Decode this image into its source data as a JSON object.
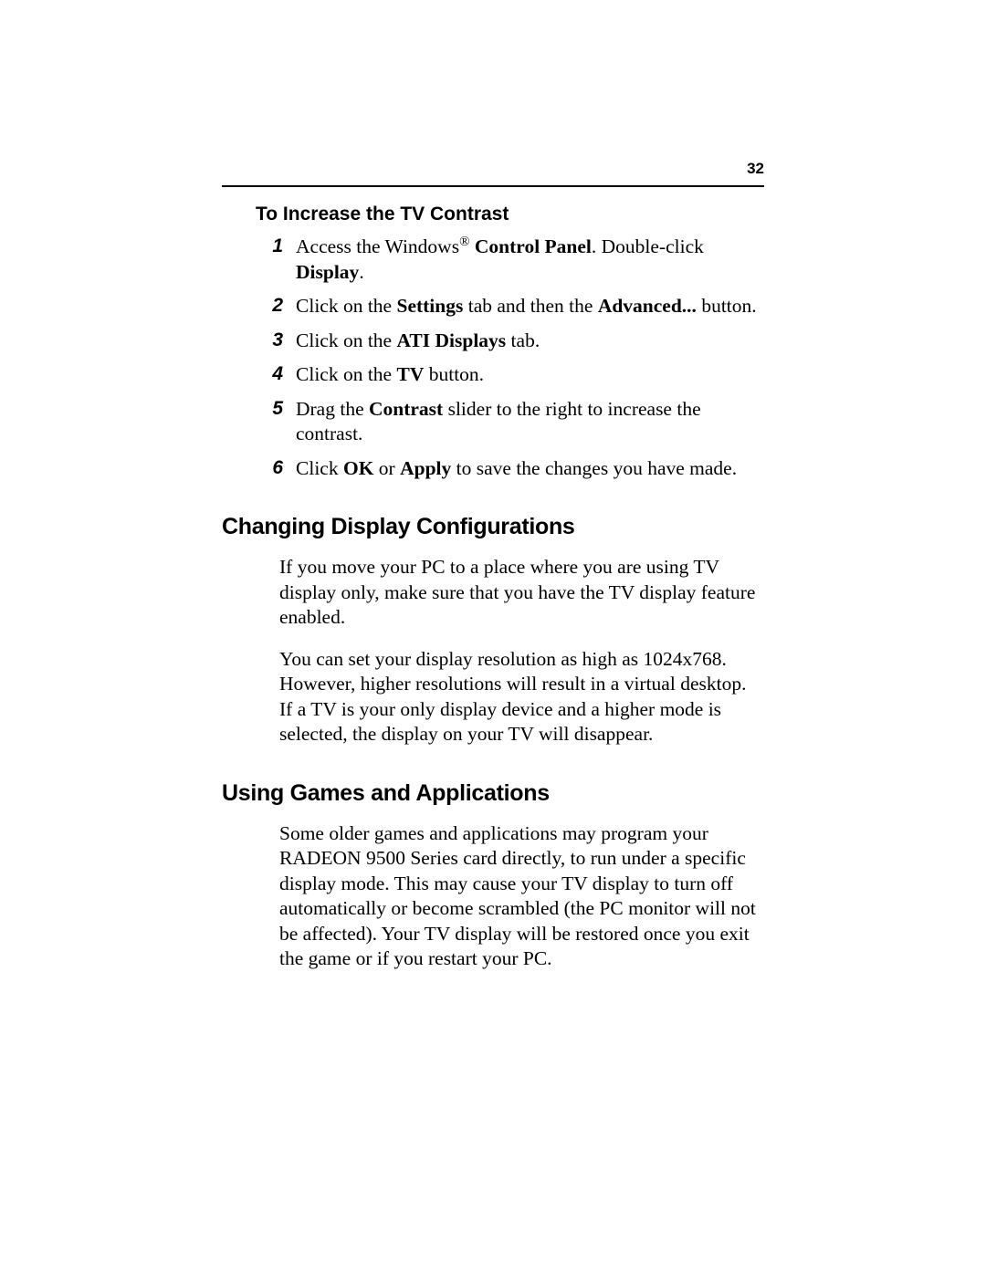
{
  "page_number": "32",
  "section_subheading": "To Increase the TV Contrast",
  "steps": [
    {
      "n": "1",
      "html": "Access the Windows<sup>®</sup> <b>Control Panel</b>. Double-click <b>Display</b>."
    },
    {
      "n": "2",
      "html": "Click on the <b>Settings</b> tab and then the <b>Advanced...</b> button."
    },
    {
      "n": "3",
      "html": "Click on the <b>ATI Displays</b> tab."
    },
    {
      "n": "4",
      "html": "Click on the <b>TV</b> button."
    },
    {
      "n": "5",
      "html": "Drag the <b>Contrast</b> slider to the right to increase the contrast."
    },
    {
      "n": "6",
      "html": "Click <b>OK</b> or <b>Apply</b> to save the changes you have made."
    }
  ],
  "heading1": "Changing Display Configurations",
  "para1": "If you move your PC to a place where you are using TV display only, make sure that you have the TV display feature enabled.",
  "para2": "You can set your display resolution as high as 1024x768. However, higher resolutions will result in a virtual desktop. If a TV is your only display device and a higher mode is selected, the display on your TV will disappear.",
  "heading2": "Using Games and Applications",
  "para3": "Some older games and applications may program your RADEON 9500 Series card directly, to run under a specific display mode. This may cause your TV display to turn off automatically or become scrambled (the PC monitor will not be affected). Your TV display will be restored once you exit the game or if you restart your PC."
}
